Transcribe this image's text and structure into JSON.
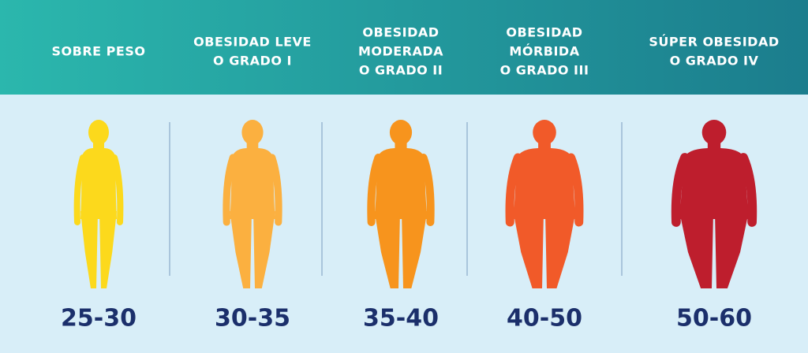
{
  "columns": [
    {
      "label": [
        "SOBRE PESO"
      ],
      "range": "25-30",
      "color": "#fcd91c"
    },
    {
      "label": [
        "OBESIDAD LEVE",
        "O GRADO I"
      ],
      "range": "30-35",
      "color": "#fbb040"
    },
    {
      "label": [
        "OBESIDAD",
        "MODERADA",
        "O GRADO II"
      ],
      "range": "35-40",
      "color": "#f7941d"
    },
    {
      "label": [
        "OBESIDAD",
        "MÓRBIDA",
        "O GRADO III"
      ],
      "range": "40-50",
      "color": "#f15a29"
    },
    {
      "label": [
        "SÚPER OBESIDAD",
        "O GRADO IV"
      ],
      "range": "50-60",
      "color": "#be1e2d"
    }
  ]
}
